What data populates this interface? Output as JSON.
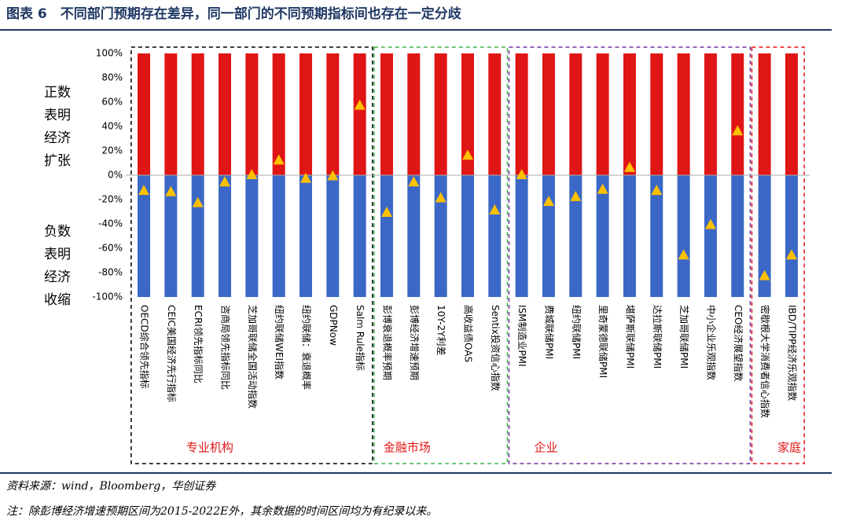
{
  "chart_data": {
    "type": "bar",
    "title": "图表 6　不同部门预期存在差异，同一部门的不同预期指标间也存在一定分歧",
    "positive_note": "正数表明经济扩张",
    "negative_note": "负数表明经济收缩",
    "groups": [
      {
        "label": "专业机构",
        "color": "#000000",
        "categories": [
          "OECD综合领先指标",
          "CEIC美国经济先行指标",
          "ECRI领先指标同比",
          "咨商局领先指标同比",
          "芝加哥联储全国活动指数",
          "纽约联储WEI指数",
          "纽约联储：衰退概率",
          "GDPNow",
          "Salm Rule指标"
        ]
      },
      {
        "label": "金融市场",
        "color": "#3cb34a",
        "categories": [
          "彭博衰退概率预期",
          "彭博经济增速预期",
          "10Y-2Y利差",
          "高收益债OAS",
          "Sentix投资信心指数"
        ]
      },
      {
        "label": "企业",
        "color": "#7030a0",
        "categories": [
          "ISM制造业PMI",
          "费城联储PMI",
          "纽约联储PMI",
          "里奇蒙德联储PMI",
          "堪萨斯联储PMI",
          "达拉斯联储PMI",
          "芝加哥联储PMI",
          "中小企业乐观指数",
          "CEO经济展望指数"
        ]
      },
      {
        "label": "家庭",
        "color": "#e31414",
        "categories": [
          "密歇根大学消费者信心指数",
          "IBD/TIPP经济乐观指数"
        ]
      }
    ],
    "values": [
      -13,
      -14,
      -23,
      -6,
      0,
      12,
      -3,
      -1,
      57,
      -31,
      -6,
      -19,
      16,
      -29,
      0,
      -22,
      -18,
      -12,
      6,
      -13,
      -66,
      -41,
      36,
      -83,
      -66
    ],
    "marker_color": "#ffc000",
    "positive_values": [
      100,
      100,
      100,
      100,
      100,
      100,
      100,
      100,
      100,
      100,
      100,
      100,
      100,
      100,
      100,
      100,
      100,
      100,
      100,
      100,
      100,
      100,
      100,
      100,
      100
    ],
    "positive_color": "#e01515",
    "negative_values": [
      -100,
      -100,
      -100,
      -100,
      -100,
      -100,
      -100,
      -100,
      -100,
      -100,
      -100,
      -100,
      -100,
      -100,
      -100,
      -100,
      -100,
      -100,
      -100,
      -100,
      -100,
      -100,
      -100,
      -100,
      -100
    ],
    "negative_color": "#3b68c6",
    "ylim": [
      -100,
      100
    ],
    "yticks": [
      {
        "value": -100,
        "label": "-100%"
      },
      {
        "value": -80,
        "label": "-80%"
      },
      {
        "value": -60,
        "label": "-60%"
      },
      {
        "value": -40,
        "label": "-40%"
      },
      {
        "value": -20,
        "label": "-20%"
      },
      {
        "value": 0,
        "label": "0%"
      },
      {
        "value": 20,
        "label": "20%"
      },
      {
        "value": 40,
        "label": "40%"
      },
      {
        "value": 60,
        "label": "60%"
      },
      {
        "value": 80,
        "label": "80%"
      },
      {
        "value": 100,
        "label": "100%"
      }
    ],
    "source": "资料来源：wind，Bloomberg，华创证券",
    "note": "注：除彭博经济增速预期区间为2015-2022E外，其余数据的时间区间均为有纪录以来。"
  }
}
